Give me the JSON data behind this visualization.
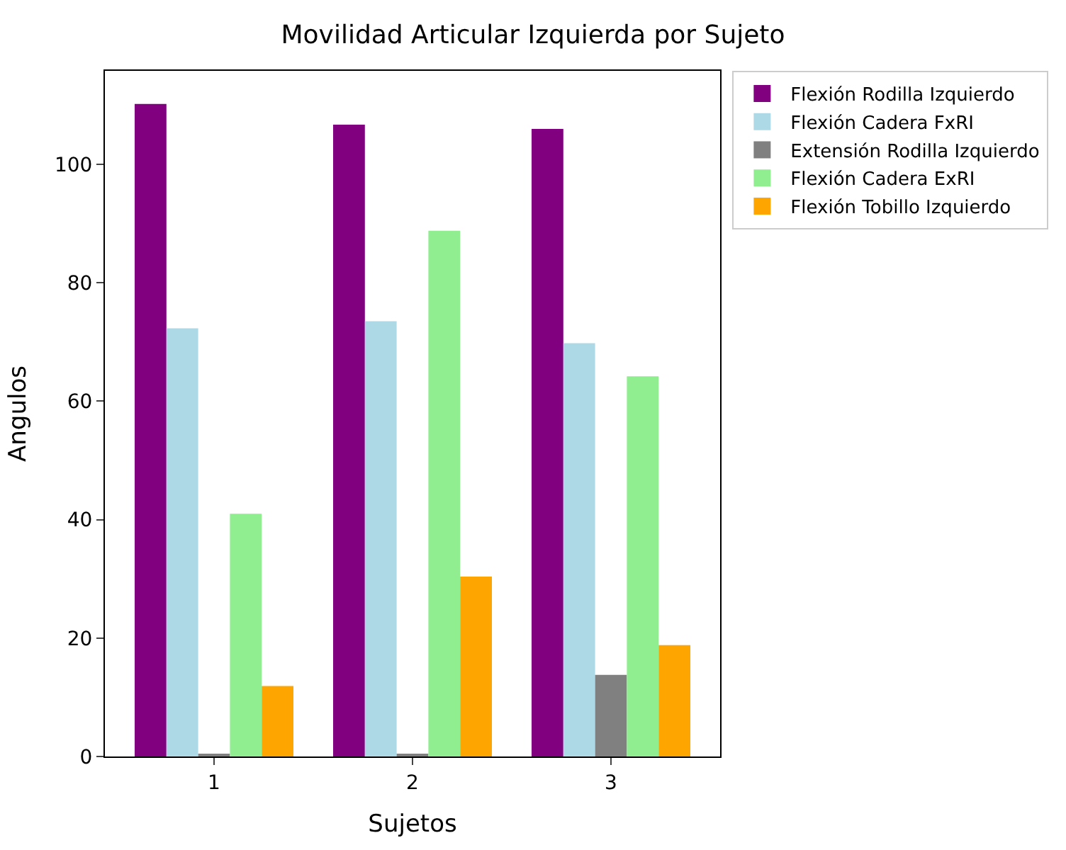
{
  "chart_data": {
    "type": "bar",
    "title": "Movilidad Articular Izquierda por Sujeto",
    "xlabel": "Sujetos",
    "ylabel": "Angulos",
    "categories": [
      "1",
      "2",
      "3"
    ],
    "series": [
      {
        "name": "Flexión Rodilla Izquierdo",
        "color": "#800080",
        "values": [
          110.2,
          106.7,
          106.0
        ]
      },
      {
        "name": "Flexión Cadera FxRI",
        "color": "#add8e6",
        "values": [
          72.3,
          73.5,
          69.8
        ]
      },
      {
        "name": "Extensión Rodilla Izquierdo",
        "color": "#808080",
        "values": [
          0.4,
          0.3,
          13.8
        ]
      },
      {
        "name": "Flexión Cadera ExRI",
        "color": "#90ee90",
        "values": [
          41.0,
          88.8,
          64.2
        ]
      },
      {
        "name": "Flexión Tobillo Izquierdo",
        "color": "#ffa500",
        "values": [
          11.9,
          30.4,
          18.8
        ]
      }
    ],
    "ylim": [
      0,
      115.8
    ],
    "yticks": [
      0,
      20,
      40,
      60,
      80,
      100
    ],
    "grid": false,
    "legend": "top right"
  }
}
